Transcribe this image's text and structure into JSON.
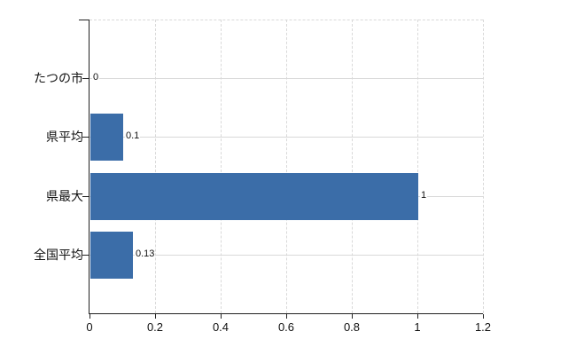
{
  "page": {
    "background": "#ffffff"
  },
  "chart_data": {
    "type": "bar",
    "orientation": "horizontal",
    "title": "",
    "subtitle": "",
    "xlabel": "",
    "ylabel": "",
    "categories": [
      "たつの市",
      "県平均",
      "県最大",
      "全国平均"
    ],
    "values": [
      0,
      0.1,
      1,
      0.13
    ],
    "value_labels": [
      "0",
      "0.1",
      "1",
      "0.13"
    ],
    "xlim": [
      0,
      1.2
    ],
    "x_ticks": [
      0,
      0.2,
      0.4,
      0.6,
      0.8,
      1,
      1.2
    ],
    "x_tick_labels": [
      "0",
      "0.2",
      "0.4",
      "0.6",
      "0.8",
      "1",
      "1.2"
    ],
    "grid": "on",
    "legend_position": "none",
    "colors": {
      "bar": "#3b6da8",
      "axis": "#222222",
      "grid": "#d9d9d9",
      "text": "#111111",
      "background": "#ffffff"
    }
  }
}
